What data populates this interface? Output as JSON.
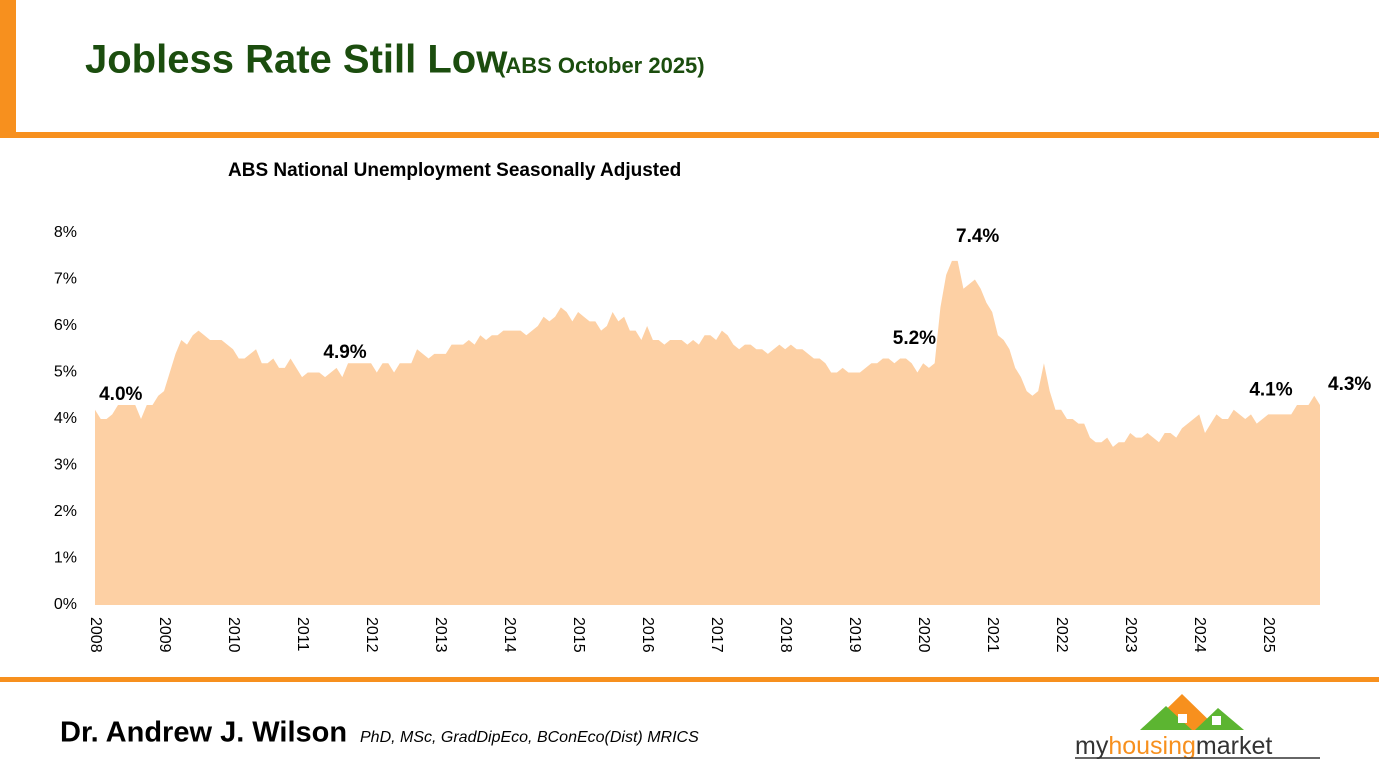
{
  "header": {
    "title": "Jobless Rate Still Low",
    "subtitle": "(ABS October 2025)"
  },
  "chart_data": {
    "type": "area",
    "title": "ABS National Unemployment Seasonally Adjusted",
    "color": "#fdd0a4",
    "categories": [
      "2008",
      null,
      null,
      null,
      null,
      null,
      null,
      null,
      null,
      null,
      null,
      null,
      "2009",
      null,
      null,
      null,
      null,
      null,
      null,
      null,
      null,
      null,
      null,
      null,
      "2010",
      null,
      null,
      null,
      null,
      null,
      null,
      null,
      null,
      null,
      null,
      null,
      "2011",
      null,
      null,
      null,
      null,
      null,
      null,
      null,
      null,
      null,
      null,
      null,
      "2012",
      null,
      null,
      null,
      null,
      null,
      null,
      null,
      null,
      null,
      null,
      null,
      "2013",
      null,
      null,
      null,
      null,
      null,
      null,
      null,
      null,
      null,
      null,
      null,
      "2014",
      null,
      null,
      null,
      null,
      null,
      null,
      null,
      null,
      null,
      null,
      null,
      "2015",
      null,
      null,
      null,
      null,
      null,
      null,
      null,
      null,
      null,
      null,
      null,
      "2016",
      null,
      null,
      null,
      null,
      null,
      null,
      null,
      null,
      null,
      null,
      null,
      "2017",
      null,
      null,
      null,
      null,
      null,
      null,
      null,
      null,
      null,
      null,
      null,
      "2018",
      null,
      null,
      null,
      null,
      null,
      null,
      null,
      null,
      null,
      null,
      null,
      "2019",
      null,
      null,
      null,
      null,
      null,
      null,
      null,
      null,
      null,
      null,
      null,
      "2020",
      null,
      null,
      null,
      null,
      null,
      null,
      null,
      null,
      null,
      null,
      null,
      "2021",
      null,
      null,
      null,
      null,
      null,
      null,
      null,
      null,
      null,
      null,
      null,
      "2022",
      null,
      null,
      null,
      null,
      null,
      null,
      null,
      null,
      null,
      null,
      null,
      "2023",
      null,
      null,
      null,
      null,
      null,
      null,
      null,
      null,
      null,
      null,
      null,
      "2024",
      null,
      null,
      null,
      null,
      null,
      null,
      null,
      null,
      null,
      null,
      null,
      "2025",
      null,
      null,
      null,
      null,
      null,
      null,
      null,
      null,
      null
    ],
    "values": [
      4.2,
      4.0,
      4.0,
      4.1,
      4.3,
      4.3,
      4.3,
      4.3,
      4.0,
      4.3,
      4.3,
      4.5,
      4.6,
      5.0,
      5.4,
      5.7,
      5.6,
      5.8,
      5.9,
      5.8,
      5.7,
      5.7,
      5.7,
      5.6,
      5.5,
      5.3,
      5.3,
      5.4,
      5.5,
      5.2,
      5.2,
      5.3,
      5.1,
      5.1,
      5.3,
      5.1,
      4.9,
      5.0,
      5.0,
      5.0,
      4.9,
      5.0,
      5.1,
      4.9,
      5.2,
      5.2,
      5.2,
      5.2,
      5.2,
      5.0,
      5.2,
      5.2,
      5.0,
      5.2,
      5.2,
      5.2,
      5.5,
      5.4,
      5.3,
      5.4,
      5.4,
      5.4,
      5.6,
      5.6,
      5.6,
      5.7,
      5.6,
      5.8,
      5.7,
      5.8,
      5.8,
      5.9,
      5.9,
      5.9,
      5.9,
      5.8,
      5.9,
      6.0,
      6.2,
      6.1,
      6.2,
      6.4,
      6.3,
      6.1,
      6.3,
      6.2,
      6.1,
      6.1,
      5.9,
      6.0,
      6.3,
      6.1,
      6.2,
      5.9,
      5.9,
      5.7,
      6.0,
      5.7,
      5.7,
      5.6,
      5.7,
      5.7,
      5.7,
      5.6,
      5.7,
      5.6,
      5.8,
      5.8,
      5.7,
      5.9,
      5.8,
      5.6,
      5.5,
      5.6,
      5.6,
      5.5,
      5.5,
      5.4,
      5.5,
      5.6,
      5.5,
      5.6,
      5.5,
      5.5,
      5.4,
      5.3,
      5.3,
      5.2,
      5.0,
      5.0,
      5.1,
      5.0,
      5.0,
      5.0,
      5.1,
      5.2,
      5.2,
      5.3,
      5.3,
      5.2,
      5.3,
      5.3,
      5.2,
      5.0,
      5.2,
      5.1,
      5.2,
      6.4,
      7.1,
      7.4,
      7.4,
      6.8,
      6.9,
      7.0,
      6.8,
      6.5,
      6.3,
      5.8,
      5.7,
      5.5,
      5.1,
      4.9,
      4.6,
      4.5,
      4.6,
      5.2,
      4.6,
      4.2,
      4.2,
      4.0,
      4.0,
      3.9,
      3.9,
      3.6,
      3.5,
      3.5,
      3.6,
      3.4,
      3.5,
      3.5,
      3.7,
      3.6,
      3.6,
      3.7,
      3.6,
      3.5,
      3.7,
      3.7,
      3.6,
      3.8,
      3.9,
      4.0,
      4.1,
      3.7,
      3.9,
      4.1,
      4.0,
      4.0,
      4.2,
      4.1,
      4.0,
      4.1,
      3.9,
      4.0,
      4.1,
      4.1,
      4.1,
      4.1,
      4.1,
      4.3,
      4.3,
      4.3,
      4.5,
      4.3
    ],
    "value_labels": [
      null,
      "4.0%",
      null,
      null,
      null,
      null,
      null,
      null,
      null,
      null,
      null,
      null,
      null,
      null,
      null,
      null,
      null,
      null,
      null,
      null,
      null,
      null,
      null,
      null,
      null,
      null,
      null,
      null,
      null,
      null,
      null,
      null,
      null,
      null,
      null,
      null,
      null,
      null,
      null,
      null,
      "4.9%",
      null,
      null,
      null,
      null,
      null,
      null,
      null,
      null,
      null,
      null,
      null,
      null,
      null,
      null,
      null,
      null,
      null,
      null,
      null,
      null,
      null,
      null,
      null,
      null,
      null,
      null,
      null,
      null,
      null,
      null,
      null,
      null,
      null,
      null,
      null,
      null,
      null,
      null,
      null,
      null,
      null,
      null,
      null,
      null,
      null,
      null,
      null,
      null,
      null,
      null,
      null,
      null,
      null,
      null,
      null,
      null,
      null,
      null,
      null,
      null,
      null,
      null,
      null,
      null,
      null,
      null,
      null,
      null,
      null,
      null,
      null,
      null,
      null,
      null,
      null,
      null,
      null,
      null,
      null,
      null,
      null,
      null,
      null,
      null,
      null,
      null,
      null,
      null,
      null,
      null,
      null,
      null,
      null,
      null,
      null,
      null,
      null,
      null,
      "5.2%",
      null,
      null,
      null,
      null,
      null,
      null,
      null,
      null,
      null,
      null,
      "7.4%",
      null,
      null,
      null,
      null,
      null,
      null,
      null,
      null,
      null,
      null,
      null,
      null,
      null,
      null,
      null,
      null,
      null,
      null,
      null,
      null,
      null,
      null,
      null,
      null,
      null,
      null,
      null,
      null,
      null,
      null,
      null,
      null,
      null,
      null,
      null,
      null,
      null,
      null,
      null,
      null,
      null,
      null,
      null,
      null,
      null,
      null,
      null,
      null,
      null,
      null,
      "4.1%",
      null,
      null,
      null,
      null,
      null,
      null,
      null,
      null,
      null,
      null,
      null,
      "4.3%"
    ],
    "ylim": [
      0,
      8
    ],
    "yticks": [
      {
        "value": 0,
        "label": "0%"
      },
      {
        "value": 1,
        "label": "1%"
      },
      {
        "value": 2,
        "label": "2%"
      },
      {
        "value": 3,
        "label": "3%"
      },
      {
        "value": 4,
        "label": "4%"
      },
      {
        "value": 5,
        "label": "5%"
      },
      {
        "value": 6,
        "label": "6%"
      },
      {
        "value": 7,
        "label": "7%"
      },
      {
        "value": 8,
        "label": "8%"
      }
    ],
    "grid": false
  },
  "footer": {
    "author": "Dr. Andrew J. Wilson",
    "credentials": "PhD, MSc, GradDipEco, BConEco(Dist) MRICS",
    "logo": {
      "part1": "my",
      "part2": "housing",
      "part3": "market"
    }
  }
}
